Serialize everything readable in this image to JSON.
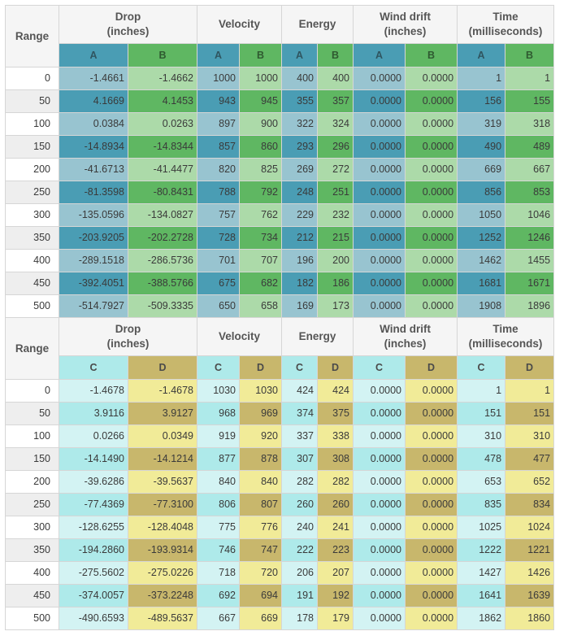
{
  "range_label": "Range",
  "headers": {
    "drop": "Drop\n(inches)",
    "velocity": "Velocity",
    "energy": "Energy",
    "wind": "Wind drift\n(inches)",
    "time": "Time\n(milliseconds)"
  },
  "colors": {
    "A_light": "#98c4d0",
    "A_dark": "#4a9db4",
    "A_header": "#4a9db4",
    "B_light": "#acdaa9",
    "B_dark": "#5fb762",
    "B_header": "#5fb762",
    "C_light": "#d3f3f3",
    "C_dark": "#aeeaea",
    "C_header": "#aeeaea",
    "D_light": "#f1eb98",
    "D_dark": "#c8b76c",
    "D_header": "#c8b76c"
  },
  "tables": [
    {
      "left": "A",
      "right": "B",
      "rows": [
        {
          "range": "0",
          "drop": [
            "-1.4661",
            "-1.4662"
          ],
          "vel": [
            "1000",
            "1000"
          ],
          "en": [
            "400",
            "400"
          ],
          "wind": [
            "0.0000",
            "0.0000"
          ],
          "time": [
            "1",
            "1"
          ]
        },
        {
          "range": "50",
          "drop": [
            "4.1669",
            "4.1453"
          ],
          "vel": [
            "943",
            "945"
          ],
          "en": [
            "355",
            "357"
          ],
          "wind": [
            "0.0000",
            "0.0000"
          ],
          "time": [
            "156",
            "155"
          ]
        },
        {
          "range": "100",
          "drop": [
            "0.0384",
            "0.0263"
          ],
          "vel": [
            "897",
            "900"
          ],
          "en": [
            "322",
            "324"
          ],
          "wind": [
            "0.0000",
            "0.0000"
          ],
          "time": [
            "319",
            "318"
          ]
        },
        {
          "range": "150",
          "drop": [
            "-14.8934",
            "-14.8344"
          ],
          "vel": [
            "857",
            "860"
          ],
          "en": [
            "293",
            "296"
          ],
          "wind": [
            "0.0000",
            "0.0000"
          ],
          "time": [
            "490",
            "489"
          ]
        },
        {
          "range": "200",
          "drop": [
            "-41.6713",
            "-41.4477"
          ],
          "vel": [
            "820",
            "825"
          ],
          "en": [
            "269",
            "272"
          ],
          "wind": [
            "0.0000",
            "0.0000"
          ],
          "time": [
            "669",
            "667"
          ]
        },
        {
          "range": "250",
          "drop": [
            "-81.3598",
            "-80.8431"
          ],
          "vel": [
            "788",
            "792"
          ],
          "en": [
            "248",
            "251"
          ],
          "wind": [
            "0.0000",
            "0.0000"
          ],
          "time": [
            "856",
            "853"
          ]
        },
        {
          "range": "300",
          "drop": [
            "-135.0596",
            "-134.0827"
          ],
          "vel": [
            "757",
            "762"
          ],
          "en": [
            "229",
            "232"
          ],
          "wind": [
            "0.0000",
            "0.0000"
          ],
          "time": [
            "1050",
            "1046"
          ]
        },
        {
          "range": "350",
          "drop": [
            "-203.9205",
            "-202.2728"
          ],
          "vel": [
            "728",
            "734"
          ],
          "en": [
            "212",
            "215"
          ],
          "wind": [
            "0.0000",
            "0.0000"
          ],
          "time": [
            "1252",
            "1246"
          ]
        },
        {
          "range": "400",
          "drop": [
            "-289.1518",
            "-286.5736"
          ],
          "vel": [
            "701",
            "707"
          ],
          "en": [
            "196",
            "200"
          ],
          "wind": [
            "0.0000",
            "0.0000"
          ],
          "time": [
            "1462",
            "1455"
          ]
        },
        {
          "range": "450",
          "drop": [
            "-392.4051",
            "-388.5766"
          ],
          "vel": [
            "675",
            "682"
          ],
          "en": [
            "182",
            "186"
          ],
          "wind": [
            "0.0000",
            "0.0000"
          ],
          "time": [
            "1681",
            "1671"
          ]
        },
        {
          "range": "500",
          "drop": [
            "-514.7927",
            "-509.3335"
          ],
          "vel": [
            "650",
            "658"
          ],
          "en": [
            "169",
            "173"
          ],
          "wind": [
            "0.0000",
            "0.0000"
          ],
          "time": [
            "1908",
            "1896"
          ]
        }
      ]
    },
    {
      "left": "C",
      "right": "D",
      "rows": [
        {
          "range": "0",
          "drop": [
            "-1.4678",
            "-1.4678"
          ],
          "vel": [
            "1030",
            "1030"
          ],
          "en": [
            "424",
            "424"
          ],
          "wind": [
            "0.0000",
            "0.0000"
          ],
          "time": [
            "1",
            "1"
          ]
        },
        {
          "range": "50",
          "drop": [
            "3.9116",
            "3.9127"
          ],
          "vel": [
            "968",
            "969"
          ],
          "en": [
            "374",
            "375"
          ],
          "wind": [
            "0.0000",
            "0.0000"
          ],
          "time": [
            "151",
            "151"
          ]
        },
        {
          "range": "100",
          "drop": [
            "0.0266",
            "0.0349"
          ],
          "vel": [
            "919",
            "920"
          ],
          "en": [
            "337",
            "338"
          ],
          "wind": [
            "0.0000",
            "0.0000"
          ],
          "time": [
            "310",
            "310"
          ]
        },
        {
          "range": "150",
          "drop": [
            "-14.1490",
            "-14.1214"
          ],
          "vel": [
            "877",
            "878"
          ],
          "en": [
            "307",
            "308"
          ],
          "wind": [
            "0.0000",
            "0.0000"
          ],
          "time": [
            "478",
            "477"
          ]
        },
        {
          "range": "200",
          "drop": [
            "-39.6286",
            "-39.5637"
          ],
          "vel": [
            "840",
            "840"
          ],
          "en": [
            "282",
            "282"
          ],
          "wind": [
            "0.0000",
            "0.0000"
          ],
          "time": [
            "653",
            "652"
          ]
        },
        {
          "range": "250",
          "drop": [
            "-77.4369",
            "-77.3100"
          ],
          "vel": [
            "806",
            "807"
          ],
          "en": [
            "260",
            "260"
          ],
          "wind": [
            "0.0000",
            "0.0000"
          ],
          "time": [
            "835",
            "834"
          ]
        },
        {
          "range": "300",
          "drop": [
            "-128.6255",
            "-128.4048"
          ],
          "vel": [
            "775",
            "776"
          ],
          "en": [
            "240",
            "241"
          ],
          "wind": [
            "0.0000",
            "0.0000"
          ],
          "time": [
            "1025",
            "1024"
          ]
        },
        {
          "range": "350",
          "drop": [
            "-194.2860",
            "-193.9314"
          ],
          "vel": [
            "746",
            "747"
          ],
          "en": [
            "222",
            "223"
          ],
          "wind": [
            "0.0000",
            "0.0000"
          ],
          "time": [
            "1222",
            "1221"
          ]
        },
        {
          "range": "400",
          "drop": [
            "-275.5602",
            "-275.0226"
          ],
          "vel": [
            "718",
            "720"
          ],
          "en": [
            "206",
            "207"
          ],
          "wind": [
            "0.0000",
            "0.0000"
          ],
          "time": [
            "1427",
            "1426"
          ]
        },
        {
          "range": "450",
          "drop": [
            "-374.0057",
            "-373.2248"
          ],
          "vel": [
            "692",
            "694"
          ],
          "en": [
            "191",
            "192"
          ],
          "wind": [
            "0.0000",
            "0.0000"
          ],
          "time": [
            "1641",
            "1639"
          ]
        },
        {
          "range": "500",
          "drop": [
            "-490.6593",
            "-489.5637"
          ],
          "vel": [
            "667",
            "669"
          ],
          "en": [
            "178",
            "179"
          ],
          "wind": [
            "0.0000",
            "0.0000"
          ],
          "time": [
            "1862",
            "1860"
          ]
        }
      ]
    }
  ]
}
